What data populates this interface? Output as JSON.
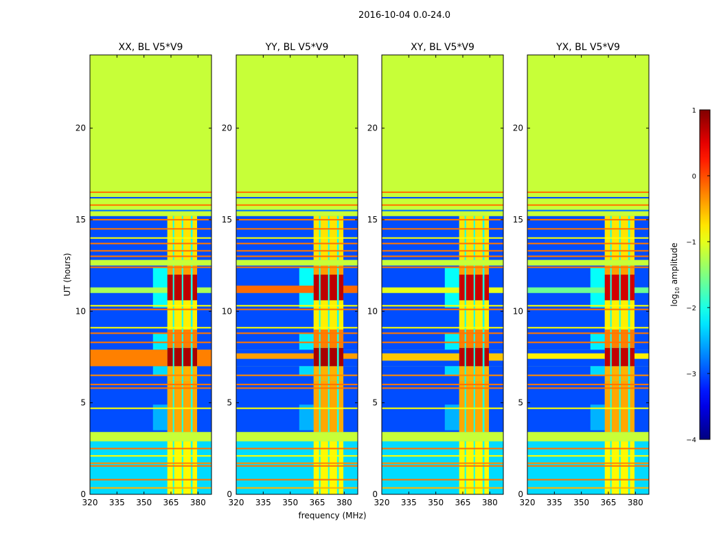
{
  "chart_data": {
    "type": "heatmap",
    "title": "2016-10-04 0.0-24.0",
    "xlabel": "frequency (MHz)",
    "ylabel": "UT (hours)",
    "xlim": [
      320,
      387.5
    ],
    "ylim": [
      0,
      24
    ],
    "xticks": [
      "320",
      "335",
      "350",
      "365",
      "380"
    ],
    "xtick_values": [
      320,
      335,
      350,
      365,
      380
    ],
    "yticks": [
      "0",
      "5",
      "10",
      "15",
      "20"
    ],
    "ytick_values": [
      0,
      5,
      10,
      15,
      20
    ],
    "colorbar": {
      "label": "log10 amplitude",
      "label_main": "log",
      "label_sub": "10",
      "label_rest": " amplitude",
      "range": [
        -4,
        1
      ],
      "ticks": [
        "1",
        "0",
        "−1",
        "−2",
        "−3",
        "−4"
      ],
      "tick_values": [
        1,
        0,
        -1,
        -2,
        -3,
        -4
      ],
      "colormap": "jet"
    },
    "flagged_value": -1.15,
    "background_segments": [
      [
        0,
        2.9,
        -2.3
      ],
      [
        3.4,
        7.0,
        -3.0
      ],
      [
        7.0,
        7.9,
        -3.0
      ],
      [
        7.9,
        11.0,
        -3.0
      ],
      [
        11.0,
        11.3,
        -2.9
      ],
      [
        11.3,
        12.5,
        -3.0
      ],
      [
        12.8,
        15.2,
        -3.0
      ]
    ],
    "spillover_segments": [
      [
        7.9,
        8.8,
        355,
        363,
        -2.2
      ],
      [
        10.2,
        12.4,
        355,
        363,
        -2.1
      ],
      [
        6.5,
        7.0,
        355,
        363,
        -2.3
      ],
      [
        3.5,
        4.9,
        355,
        363,
        -2.5
      ]
    ],
    "rfi_columns": [
      [
        363,
        366
      ],
      [
        366.8,
        371
      ],
      [
        371.8,
        376
      ],
      [
        377,
        379.5
      ]
    ],
    "column_levels": [
      [
        0,
        2.9,
        -0.85
      ],
      [
        3.4,
        6.2,
        -0.45
      ],
      [
        6.2,
        7.0,
        -0.5
      ],
      [
        7.0,
        8.0,
        0.8
      ],
      [
        8.0,
        9.0,
        -0.25
      ],
      [
        9.0,
        10.6,
        -0.8
      ],
      [
        10.6,
        12.0,
        0.7
      ],
      [
        12.0,
        12.5,
        -0.4
      ],
      [
        12.8,
        15.2,
        -0.75
      ]
    ],
    "flagged_segments": [
      [
        2.9,
        3.4
      ],
      [
        12.5,
        12.8
      ],
      [
        15.2,
        24
      ]
    ],
    "rfi_lines": [
      [
        0.35,
        -0.5
      ],
      [
        0.8,
        -0.2
      ],
      [
        1.55,
        -0.2
      ],
      [
        1.7,
        -0.3
      ],
      [
        2.1,
        -0.9
      ],
      [
        2.5,
        -0.2
      ],
      [
        4.7,
        -0.9
      ],
      [
        5.8,
        -0.2
      ],
      [
        6.0,
        -0.2
      ],
      [
        6.5,
        -0.3
      ],
      [
        8.3,
        -0.2
      ],
      [
        8.8,
        -0.2
      ],
      [
        9.1,
        -0.9
      ],
      [
        10.1,
        -0.2
      ],
      [
        10.3,
        -0.9
      ],
      [
        12.4,
        -0.2
      ],
      [
        13.0,
        -0.2
      ],
      [
        13.3,
        -0.2
      ],
      [
        13.7,
        -0.2
      ],
      [
        14.0,
        -0.9
      ],
      [
        14.5,
        -0.2
      ],
      [
        15.0,
        -0.2
      ],
      [
        15.5,
        -2.8
      ],
      [
        15.8,
        -0.2
      ],
      [
        16.2,
        -3.0
      ],
      [
        16.5,
        -0.2
      ]
    ],
    "panels": [
      {
        "title": "XX, BL V5*V9",
        "broadband_events": [
          [
            7.0,
            7.9,
            -0.25
          ],
          [
            11.0,
            11.3,
            -1.3
          ]
        ],
        "band_peak_scale": 1.0
      },
      {
        "title": "YY, BL V5*V9",
        "broadband_events": [
          [
            7.4,
            7.7,
            -0.4
          ],
          [
            11.0,
            11.4,
            -0.15
          ]
        ],
        "band_peak_scale": 1.0
      },
      {
        "title": "XY, BL V5*V9",
        "broadband_events": [
          [
            7.3,
            7.7,
            -0.6
          ],
          [
            11.0,
            11.3,
            -1.0
          ]
        ],
        "band_peak_scale": 0.9
      },
      {
        "title": "YX, BL V5*V9",
        "broadband_events": [
          [
            7.4,
            7.7,
            -0.8
          ],
          [
            11.0,
            11.3,
            -1.6
          ]
        ],
        "band_peak_scale": 0.85
      }
    ]
  }
}
